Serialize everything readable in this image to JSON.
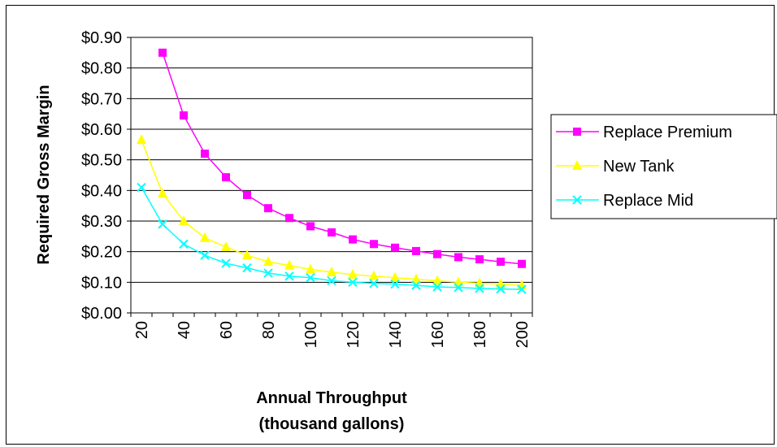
{
  "chart_data": {
    "type": "line",
    "x": [
      20,
      30,
      40,
      50,
      60,
      70,
      80,
      90,
      100,
      110,
      120,
      130,
      140,
      150,
      160,
      170,
      180,
      190,
      200
    ],
    "series": [
      {
        "name": "Replace Premium",
        "color": "#ff00ff",
        "marker": "square",
        "values": [
          null,
          0.85,
          0.645,
          0.52,
          0.443,
          0.385,
          0.342,
          0.31,
          0.283,
          0.263,
          0.24,
          0.225,
          0.213,
          0.202,
          0.192,
          0.182,
          0.175,
          0.167,
          0.16
        ]
      },
      {
        "name": "New Tank",
        "color": "#ffff00",
        "marker": "triangle",
        "values": [
          0.565,
          0.39,
          0.3,
          0.245,
          0.215,
          0.188,
          0.167,
          0.155,
          0.142,
          0.133,
          0.125,
          0.12,
          0.115,
          0.11,
          0.105,
          0.1,
          0.097,
          0.094,
          0.09
        ]
      },
      {
        "name": "Replace Mid",
        "color": "#00ffff",
        "marker": "x",
        "values": [
          0.41,
          0.29,
          0.225,
          0.188,
          0.162,
          0.147,
          0.13,
          0.12,
          0.115,
          0.105,
          0.1,
          0.096,
          0.094,
          0.09,
          0.085,
          0.083,
          0.08,
          0.078,
          0.077
        ]
      }
    ],
    "ylim": [
      0,
      0.9
    ],
    "yticks": [
      0,
      0.1,
      0.2,
      0.3,
      0.4,
      0.5,
      0.6,
      0.7,
      0.8,
      0.9
    ],
    "ytick_labels": [
      "$0.00",
      "$0.10",
      "$0.20",
      "$0.30",
      "$0.40",
      "$0.50",
      "$0.60",
      "$0.70",
      "$0.80",
      "$0.90"
    ],
    "xticks": [
      20,
      40,
      60,
      80,
      100,
      120,
      140,
      160,
      180,
      200
    ],
    "xtick_labels": [
      "20",
      "40",
      "60",
      "80",
      "100",
      "120",
      "140",
      "160",
      "180",
      "200"
    ],
    "ylabel": "Required Gross Margin",
    "xlabel_line1": "Annual Throughput",
    "xlabel_line2": "(thousand gallons)",
    "grid": "horizontal",
    "legend_position": "right"
  }
}
